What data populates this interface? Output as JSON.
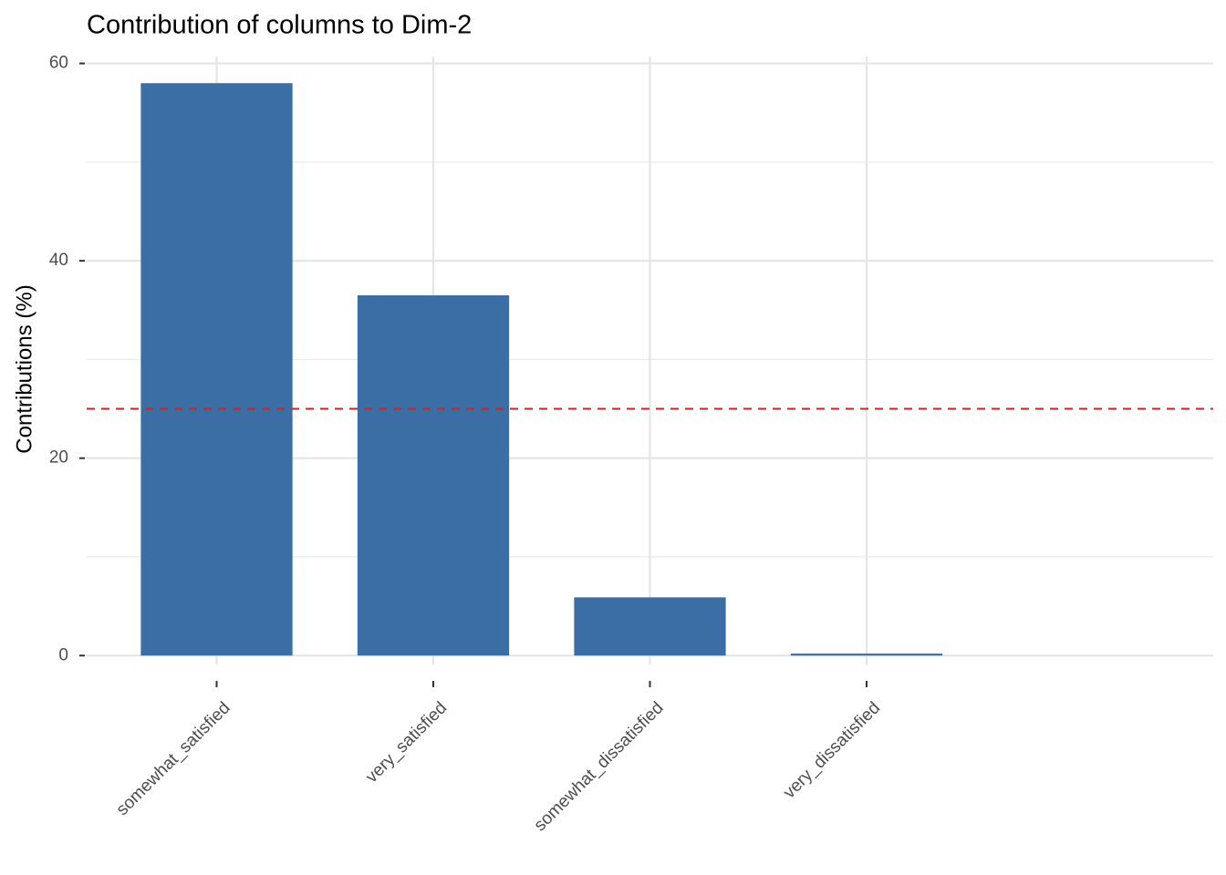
{
  "chart_data": {
    "type": "bar",
    "title": "Contribution of columns to Dim-2",
    "y_label": "Contributions (%)",
    "categories": [
      "somewhat_satisfied",
      "very_satisfied",
      "somewhat_dissatisfied",
      "very_dissatisfied"
    ],
    "values": [
      58.0,
      36.5,
      5.9,
      0.2
    ],
    "color": "#3a6ea5",
    "ylim": [
      -0.9,
      60.7
    ],
    "yticks": [
      0,
      20,
      40,
      60
    ],
    "minor_yticks": [
      10,
      30,
      50
    ],
    "grid": true,
    "reference_line": {
      "value": 25,
      "color": "#e41a1c",
      "dashed": true
    }
  }
}
